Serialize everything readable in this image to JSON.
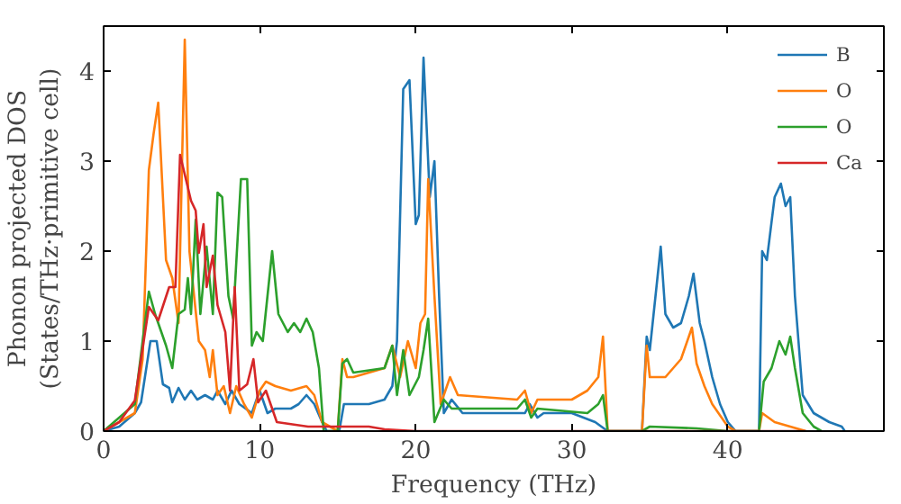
{
  "chart_data": {
    "type": "line",
    "xlabel": "Frequency (THz)",
    "ylabel": "Phonon projected DOS\n(States/THz·primitive cell)",
    "xlim": [
      0,
      50
    ],
    "ylim": [
      0,
      4.5
    ],
    "xticks": [
      0,
      10,
      20,
      30,
      40
    ],
    "yticks": [
      0,
      1,
      2,
      3,
      4
    ],
    "grid": false,
    "legend": "top right",
    "series": [
      {
        "name": "B",
        "color": "#1f77b4",
        "x": [
          0,
          1,
          2,
          2.4,
          3.0,
          3.4,
          3.8,
          4.2,
          4.4,
          4.8,
          5.2,
          5.6,
          6,
          6.5,
          7,
          7.3,
          7.8,
          8.2,
          8.7,
          9.1,
          9.5,
          10,
          10.5,
          11,
          12,
          12.5,
          13,
          13.5,
          14,
          14.3,
          15.1,
          15.4,
          16,
          17,
          18,
          18.5,
          18.8,
          19.2,
          19.6,
          20,
          20.2,
          20.5,
          20.9,
          21.2,
          21.5,
          21.8,
          22.3,
          23,
          27,
          27.3,
          27.8,
          28.2,
          30,
          31.5,
          32.3,
          34.5,
          34.8,
          35,
          35.7,
          36,
          36.5,
          37,
          37.5,
          37.8,
          38.2,
          38.5,
          39,
          39.5,
          40,
          40.5,
          42,
          42.2,
          42.5,
          43,
          43.4,
          43.7,
          44,
          44.3,
          44.8,
          45.5,
          46.5,
          47.3,
          47.5
        ],
        "values": [
          0,
          0.05,
          0.2,
          0.32,
          1.0,
          1.0,
          0.52,
          0.48,
          0.32,
          0.48,
          0.35,
          0.45,
          0.35,
          0.4,
          0.35,
          0.45,
          0.3,
          0.45,
          0.3,
          0.25,
          0.2,
          0.45,
          0.2,
          0.25,
          0.25,
          0.3,
          0.4,
          0.3,
          0.1,
          0,
          0,
          0.3,
          0.3,
          0.3,
          0.35,
          0.5,
          1.0,
          3.8,
          3.9,
          2.3,
          2.4,
          4.15,
          2.6,
          3.0,
          1.5,
          0.2,
          0.35,
          0.2,
          0.2,
          0.3,
          0.15,
          0.2,
          0.2,
          0.1,
          0,
          0,
          1.05,
          0.9,
          2.05,
          1.3,
          1.15,
          1.2,
          1.5,
          1.75,
          1.2,
          1.0,
          0.6,
          0.3,
          0.1,
          0,
          0,
          2.0,
          1.9,
          2.6,
          2.75,
          2.5,
          2.6,
          1.5,
          0.4,
          0.2,
          0.1,
          0.05,
          0
        ]
      },
      {
        "name": "O",
        "color": "#ff7f0e",
        "x": [
          0,
          2,
          2.5,
          2.9,
          3.2,
          3.5,
          4,
          4.4,
          4.8,
          5.2,
          5.5,
          5.8,
          6.1,
          6.5,
          6.8,
          7,
          7.3,
          7.7,
          8.1,
          8.5,
          9,
          9.5,
          10,
          10.4,
          11,
          12,
          13,
          13.5,
          14,
          15,
          15.3,
          15.6,
          16,
          18,
          18.5,
          19,
          19.5,
          20,
          20.3,
          20.6,
          20.8,
          21.2,
          21.6,
          22.2,
          22.7,
          26.5,
          27,
          27.4,
          27.8,
          30,
          31,
          31.7,
          32,
          32.3,
          34.5,
          34.8,
          35,
          35.3,
          36,
          37,
          37.7,
          38,
          38.5,
          39,
          40,
          40.5,
          42,
          42.2,
          43,
          44,
          45
        ],
        "values": [
          0,
          0.2,
          0.8,
          2.9,
          3.3,
          3.65,
          1.9,
          1.7,
          1.2,
          4.35,
          2.0,
          1.5,
          1.0,
          0.9,
          0.6,
          0.9,
          0.4,
          0.5,
          0.2,
          0.5,
          0.3,
          0.15,
          0.45,
          0.55,
          0.5,
          0.45,
          0.5,
          0.4,
          0.1,
          0,
          0.8,
          0.6,
          0.6,
          0.7,
          0.95,
          0.6,
          1.0,
          0.7,
          1.2,
          1.3,
          2.8,
          1.5,
          0.3,
          0.6,
          0.4,
          0.35,
          0.45,
          0.2,
          0.35,
          0.35,
          0.45,
          0.6,
          1.05,
          0,
          0,
          0.95,
          0.6,
          0.6,
          0.6,
          0.8,
          1.15,
          0.75,
          0.5,
          0.3,
          0.05,
          0,
          0,
          0.2,
          0.1,
          0.05,
          0
        ]
      },
      {
        "name": "O",
        "color": "#2ca02c",
        "x": [
          0,
          2,
          2.5,
          2.9,
          3.3,
          3.7,
          4,
          4.4,
          4.8,
          5.2,
          5.4,
          5.6,
          5.9,
          6.2,
          6.6,
          7,
          7.3,
          7.6,
          8,
          8.3,
          8.8,
          9.2,
          9.5,
          9.8,
          10.2,
          10.8,
          11.2,
          11.8,
          12.2,
          12.6,
          13,
          13.4,
          13.8,
          14.1,
          15,
          15.3,
          15.6,
          16,
          18,
          18.5,
          18.8,
          19.2,
          19.6,
          20.2,
          20.5,
          20.8,
          21.2,
          21.8,
          22.3,
          26.5,
          27,
          27.4,
          27.8,
          31,
          31.7,
          32,
          32.3,
          34.5,
          35,
          38,
          40,
          42,
          42.3,
          42.8,
          43.3,
          43.7,
          44,
          44.3,
          44.8,
          45.5,
          46
        ],
        "values": [
          0,
          0.3,
          1.0,
          1.55,
          1.3,
          1.1,
          0.95,
          0.7,
          1.3,
          1.35,
          1.7,
          1.3,
          2.35,
          1.3,
          2.05,
          1.3,
          2.65,
          2.6,
          1.5,
          1.25,
          2.8,
          2.8,
          0.95,
          1.1,
          1.0,
          2.0,
          1.3,
          1.1,
          1.2,
          1.1,
          1.25,
          1.1,
          0.7,
          0,
          0,
          0.75,
          0.8,
          0.65,
          0.7,
          0.95,
          0.4,
          0.9,
          0.4,
          0.6,
          0.9,
          1.25,
          0.1,
          0.35,
          0.25,
          0.25,
          0.35,
          0.15,
          0.25,
          0.2,
          0.3,
          0.4,
          0,
          0,
          0.05,
          0.03,
          0,
          0,
          0.55,
          0.7,
          1.0,
          0.85,
          1.05,
          0.7,
          0.2,
          0.05,
          0
        ]
      },
      {
        "name": "Ca",
        "color": "#d62728",
        "x": [
          0,
          1,
          2.0,
          2.9,
          3.5,
          4.2,
          4.6,
          4.9,
          5.6,
          5.9,
          6.1,
          6.4,
          6.6,
          7.0,
          7.3,
          7.8,
          8.1,
          8.4,
          8.7,
          9.2,
          9.6,
          9.9,
          10.4,
          11.1,
          13.1,
          15,
          17,
          18,
          20,
          45
        ],
        "values": [
          0,
          0.1,
          0.34,
          1.38,
          1.23,
          1.6,
          1.6,
          3.07,
          2.56,
          2.45,
          1.98,
          2.3,
          1.6,
          1.95,
          1.4,
          1.1,
          0.45,
          1.6,
          0.45,
          0.52,
          0.8,
          0.32,
          0.45,
          0.1,
          0.05,
          0.05,
          0.05,
          0.02,
          0,
          0
        ]
      }
    ]
  }
}
